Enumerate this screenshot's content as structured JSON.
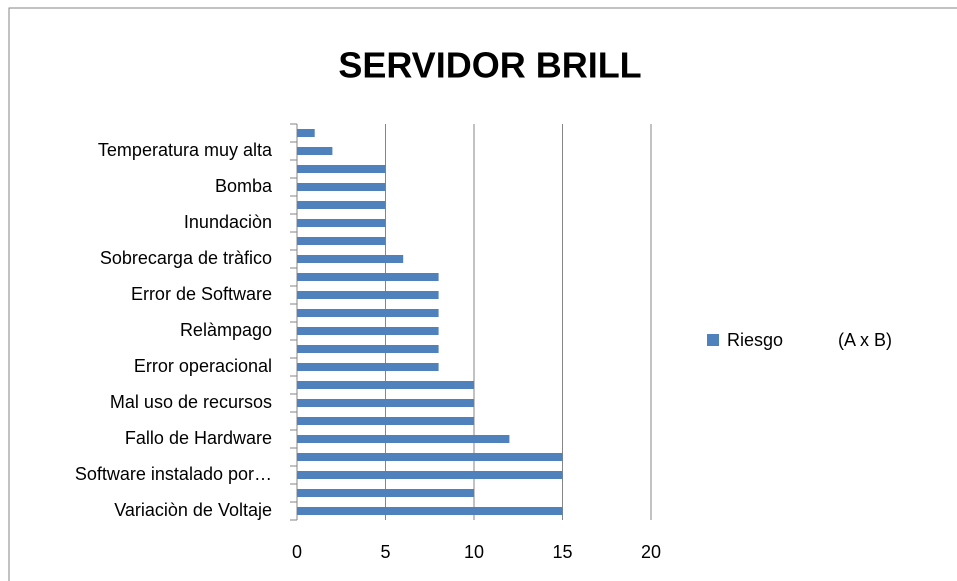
{
  "chart_data": {
    "type": "bar",
    "orientation": "horizontal",
    "title": "SERVIDOR BRILL",
    "categories": [
      "Variaciòn de Voltaje",
      null,
      "Software instalado por…",
      null,
      "Fallo de Hardware",
      null,
      "Mal uso de recursos",
      null,
      "Error operacional",
      null,
      "Relàmpago",
      null,
      "Error de Software",
      null,
      "Sobrecarga de tràfico",
      null,
      "Inundaciòn",
      null,
      "Bomba",
      null,
      "Temperatura muy alta",
      null
    ],
    "series": [
      {
        "name": "Riesgo           (A x B)",
        "color": "#4f81bd",
        "values": [
          15,
          10,
          15,
          15,
          12,
          10,
          10,
          10,
          8,
          8,
          8,
          8,
          8,
          8,
          6,
          5,
          5,
          5,
          5,
          5,
          2,
          1
        ]
      }
    ],
    "xlim": [
      0,
      20
    ],
    "xticks": [
      0,
      5,
      10,
      15,
      20
    ],
    "grid": true,
    "legend": "right"
  }
}
